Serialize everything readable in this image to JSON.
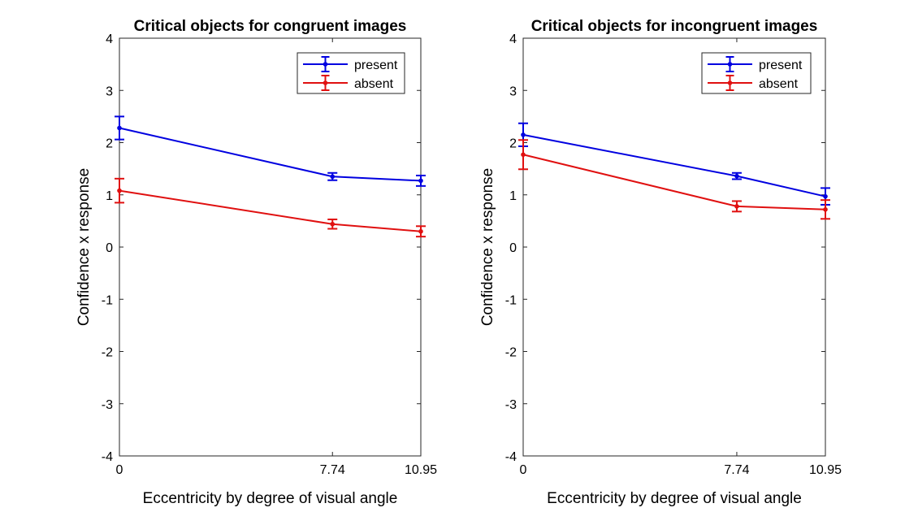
{
  "chart_data": [
    {
      "type": "line",
      "title": "Critical objects for congruent images",
      "xlabel": "Eccentricity by degree of visual angle",
      "ylabel": "Confidence x response",
      "x": [
        0,
        7.74,
        10.95
      ],
      "xticks": [
        "0",
        "7.74",
        "10.95"
      ],
      "xlim": [
        0,
        10.95
      ],
      "ylim": [
        -4,
        4
      ],
      "yticks": [
        "-4",
        "-3",
        "-2",
        "-1",
        "0",
        "1",
        "2",
        "3",
        "4"
      ],
      "legend": "top-right",
      "series": [
        {
          "name": "present",
          "color": "#0000e0",
          "values": [
            2.28,
            1.35,
            1.27
          ],
          "errors": [
            0.22,
            0.07,
            0.1
          ]
        },
        {
          "name": "absent",
          "color": "#e01010",
          "values": [
            1.08,
            0.44,
            0.3
          ],
          "errors": [
            0.23,
            0.09,
            0.1
          ]
        }
      ]
    },
    {
      "type": "line",
      "title": "Critical objects for incongruent images",
      "xlabel": "Eccentricity by degree of visual angle",
      "ylabel": "Confidence x response",
      "x": [
        0,
        7.74,
        10.95
      ],
      "xticks": [
        "0",
        "7.74",
        "10.95"
      ],
      "xlim": [
        0,
        10.95
      ],
      "ylim": [
        -4,
        4
      ],
      "yticks": [
        "-4",
        "-3",
        "-2",
        "-1",
        "0",
        "1",
        "2",
        "3",
        "4"
      ],
      "legend": "top-right",
      "series": [
        {
          "name": "present",
          "color": "#0000e0",
          "values": [
            2.15,
            1.36,
            0.97
          ],
          "errors": [
            0.22,
            0.06,
            0.16
          ]
        },
        {
          "name": "absent",
          "color": "#e01010",
          "values": [
            1.77,
            0.78,
            0.72
          ],
          "errors": [
            0.28,
            0.1,
            0.18
          ]
        }
      ]
    }
  ]
}
